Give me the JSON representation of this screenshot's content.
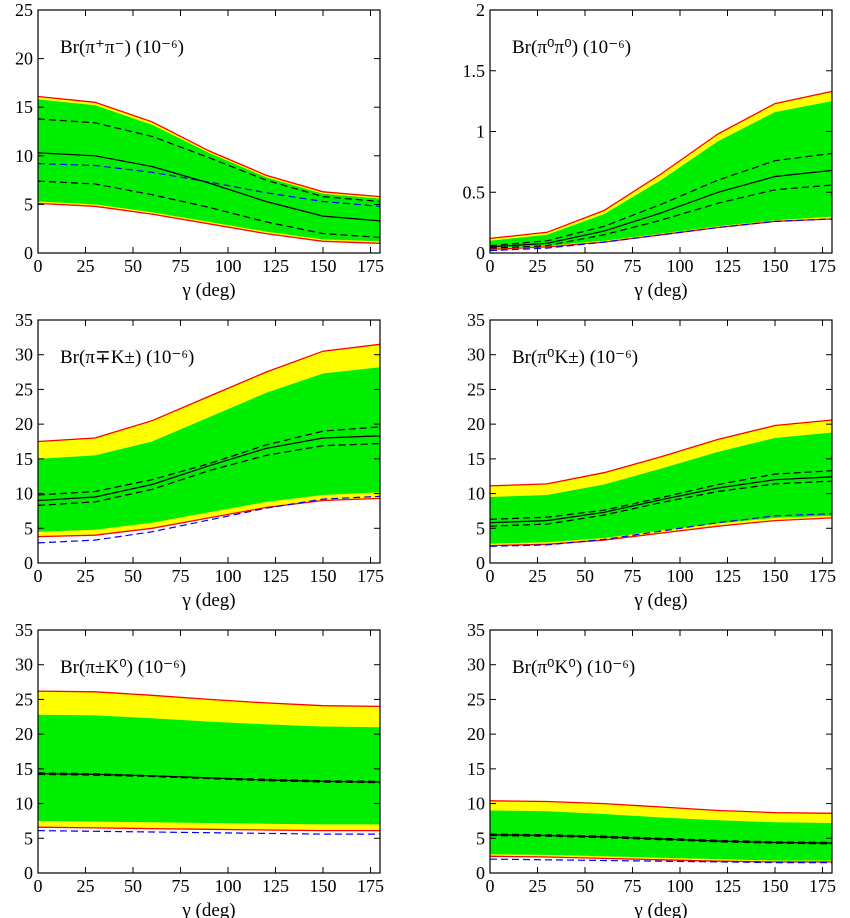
{
  "chart_data": [
    {
      "type": "band",
      "label": "Br(π⁺π⁻) (10⁻⁶)",
      "xlabel": "γ (deg)",
      "x": [
        0,
        30,
        60,
        90,
        120,
        150,
        180
      ],
      "xlim": [
        0,
        180
      ],
      "xticks": [
        0,
        25,
        50,
        75,
        100,
        125,
        150,
        175
      ],
      "ylim": [
        0,
        25
      ],
      "yticks": [
        0,
        5,
        10,
        15,
        20,
        25
      ],
      "bands": [
        {
          "color": "#ffff00",
          "edge": "#ff0000",
          "upper": [
            16.1,
            15.5,
            13.5,
            10.5,
            8,
            6.3,
            5.8
          ],
          "lower": [
            5.1,
            4.8,
            4,
            3,
            2,
            1.2,
            1.0
          ]
        },
        {
          "color": "#00ee00",
          "upper": [
            15.8,
            15.2,
            13.2,
            10.3,
            7.8,
            6.1,
            5.6
          ],
          "lower": [
            5.3,
            5,
            4.2,
            3.2,
            2.2,
            1.4,
            1.2
          ]
        }
      ],
      "series": [
        {
          "color": "#000000",
          "dash": false,
          "values": [
            10.3,
            10,
            8.9,
            7.2,
            5.3,
            3.8,
            3.3
          ]
        },
        {
          "color": "#000000",
          "dash": true,
          "values": [
            13.8,
            13.4,
            12,
            9.8,
            7.5,
            5.8,
            5.3
          ]
        },
        {
          "color": "#000000",
          "dash": true,
          "values": [
            7.4,
            7.1,
            6,
            4.7,
            3.2,
            2,
            1.6
          ]
        },
        {
          "color": "#0000ff",
          "dash": true,
          "values": [
            9.2,
            9,
            8.3,
            7.3,
            6.2,
            5.3,
            4.8
          ]
        }
      ]
    },
    {
      "type": "band",
      "label": "Br(π⁰π⁰) (10⁻⁶)",
      "xlabel": "γ (deg)",
      "x": [
        0,
        30,
        60,
        90,
        120,
        150,
        180
      ],
      "xlim": [
        0,
        180
      ],
      "xticks": [
        0,
        25,
        50,
        75,
        100,
        125,
        150,
        175
      ],
      "ylim": [
        0,
        2
      ],
      "yticks": [
        0,
        0.5,
        1,
        1.5,
        2
      ],
      "bands": [
        {
          "color": "#ffff00",
          "edge": "#ff0000",
          "upper": [
            0.12,
            0.17,
            0.35,
            0.65,
            0.98,
            1.23,
            1.33
          ],
          "lower": [
            0.03,
            0.05,
            0.09,
            0.15,
            0.21,
            0.26,
            0.28
          ]
        },
        {
          "color": "#00ee00",
          "upper": [
            0.1,
            0.15,
            0.32,
            0.6,
            0.92,
            1.16,
            1.25
          ],
          "lower": [
            0.04,
            0.06,
            0.1,
            0.16,
            0.22,
            0.27,
            0.3
          ]
        }
      ],
      "series": [
        {
          "color": "#000000",
          "dash": false,
          "values": [
            0.05,
            0.08,
            0.18,
            0.33,
            0.5,
            0.63,
            0.68
          ]
        },
        {
          "color": "#000000",
          "dash": true,
          "values": [
            0.06,
            0.1,
            0.22,
            0.4,
            0.6,
            0.76,
            0.82
          ]
        },
        {
          "color": "#000000",
          "dash": true,
          "values": [
            0.04,
            0.06,
            0.15,
            0.27,
            0.41,
            0.52,
            0.56
          ]
        },
        {
          "color": "#0000ff",
          "dash": true,
          "values": [
            0.02,
            0.04,
            0.09,
            0.15,
            0.21,
            0.26,
            0.28
          ]
        }
      ]
    },
    {
      "type": "band",
      "label": "Br(π∓K±) (10⁻⁶)",
      "xlabel": "γ (deg)",
      "x": [
        0,
        30,
        60,
        90,
        120,
        150,
        180
      ],
      "xlim": [
        0,
        180
      ],
      "xticks": [
        0,
        25,
        50,
        75,
        100,
        125,
        150,
        175
      ],
      "ylim": [
        0,
        35
      ],
      "yticks": [
        0,
        5,
        10,
        15,
        20,
        25,
        30,
        35
      ],
      "bands": [
        {
          "color": "#ffff00",
          "edge": "#ff0000",
          "upper": [
            17.5,
            18,
            20.5,
            24,
            27.5,
            30.5,
            31.5
          ],
          "lower": [
            3.8,
            4,
            5,
            6.5,
            8,
            9,
            9.3
          ]
        },
        {
          "color": "#00ee00",
          "upper": [
            15,
            15.5,
            17.5,
            21,
            24.5,
            27.3,
            28.2
          ],
          "lower": [
            4.5,
            4.8,
            5.8,
            7.3,
            8.8,
            9.8,
            10.2
          ]
        }
      ],
      "series": [
        {
          "color": "#000000",
          "dash": false,
          "values": [
            9,
            9.5,
            11.3,
            14,
            16.5,
            18,
            18.3
          ]
        },
        {
          "color": "#000000",
          "dash": true,
          "values": [
            9.8,
            10.3,
            12,
            14.3,
            17,
            19,
            19.6
          ]
        },
        {
          "color": "#000000",
          "dash": true,
          "values": [
            8.3,
            8.8,
            10.6,
            13.3,
            15.5,
            16.9,
            17.2
          ]
        },
        {
          "color": "#0000ff",
          "dash": true,
          "values": [
            2.9,
            3.3,
            4.5,
            6.2,
            7.9,
            9.2,
            9.6
          ]
        }
      ]
    },
    {
      "type": "band",
      "label": "Br(π⁰K±) (10⁻⁶)",
      "xlabel": "γ (deg)",
      "x": [
        0,
        30,
        60,
        90,
        120,
        150,
        180
      ],
      "xlim": [
        0,
        180
      ],
      "xticks": [
        0,
        25,
        50,
        75,
        100,
        125,
        150,
        175
      ],
      "ylim": [
        0,
        35
      ],
      "yticks": [
        0,
        5,
        10,
        15,
        20,
        25,
        30,
        35
      ],
      "bands": [
        {
          "color": "#ffff00",
          "edge": "#ff0000",
          "upper": [
            11.1,
            11.4,
            13,
            15.3,
            17.8,
            19.8,
            20.6
          ],
          "lower": [
            2.5,
            2.7,
            3.3,
            4.3,
            5.3,
            6.1,
            6.5
          ]
        },
        {
          "color": "#00ee00",
          "upper": [
            9.5,
            9.8,
            11.3,
            13.6,
            16,
            18,
            18.8
          ],
          "lower": [
            2.8,
            3,
            3.6,
            4.7,
            5.7,
            6.5,
            6.8
          ]
        }
      ],
      "series": [
        {
          "color": "#000000",
          "dash": false,
          "values": [
            5.8,
            6.1,
            7.3,
            9.1,
            10.8,
            12,
            12.4
          ]
        },
        {
          "color": "#000000",
          "dash": true,
          "values": [
            6.3,
            6.6,
            7.6,
            9.4,
            11.3,
            12.8,
            13.3
          ]
        },
        {
          "color": "#000000",
          "dash": true,
          "values": [
            5.3,
            5.6,
            6.9,
            8.7,
            10.3,
            11.4,
            11.8
          ]
        },
        {
          "color": "#0000ff",
          "dash": true,
          "values": [
            2.4,
            2.6,
            3.4,
            4.6,
            5.8,
            6.8,
            7.1
          ]
        }
      ]
    },
    {
      "type": "band",
      "label": "Br(π±K⁰) (10⁻⁶)",
      "xlabel": "γ (deg)",
      "x": [
        0,
        30,
        60,
        90,
        120,
        150,
        180
      ],
      "xlim": [
        0,
        180
      ],
      "xticks": [
        0,
        25,
        50,
        75,
        100,
        125,
        150,
        175
      ],
      "ylim": [
        0,
        35
      ],
      "yticks": [
        0,
        5,
        10,
        15,
        20,
        25,
        30,
        35
      ],
      "bands": [
        {
          "color": "#ffff00",
          "edge": "#ff0000",
          "upper": [
            26.2,
            26.1,
            25.6,
            25,
            24.5,
            24.1,
            24
          ],
          "lower": [
            6.6,
            6.5,
            6.4,
            6.3,
            6.2,
            6.1,
            6.1
          ]
        },
        {
          "color": "#00ee00",
          "upper": [
            22.8,
            22.7,
            22.3,
            21.8,
            21.4,
            21.1,
            21
          ],
          "lower": [
            7.5,
            7.4,
            7.3,
            7.2,
            7.1,
            7,
            7
          ]
        }
      ],
      "series": [
        {
          "color": "#000000",
          "dash": false,
          "values": [
            14.3,
            14.2,
            14,
            13.7,
            13.4,
            13.2,
            13.1
          ]
        },
        {
          "color": "#000000",
          "dash": true,
          "values": [
            14.4,
            14.3,
            14,
            13.7,
            13.5,
            13.3,
            13.2
          ]
        },
        {
          "color": "#000000",
          "dash": true,
          "values": [
            14.2,
            14.1,
            13.9,
            13.6,
            13.3,
            13.1,
            13
          ]
        },
        {
          "color": "#0000ff",
          "dash": true,
          "values": [
            6.1,
            6,
            5.9,
            5.8,
            5.7,
            5.6,
            5.6
          ]
        }
      ]
    },
    {
      "type": "band",
      "label": "Br(π⁰K⁰) (10⁻⁶)",
      "xlabel": "γ (deg)",
      "x": [
        0,
        30,
        60,
        90,
        120,
        150,
        180
      ],
      "xlim": [
        0,
        180
      ],
      "xticks": [
        0,
        25,
        50,
        75,
        100,
        125,
        150,
        175
      ],
      "ylim": [
        0,
        35
      ],
      "yticks": [
        0,
        5,
        10,
        15,
        20,
        25,
        30,
        35
      ],
      "bands": [
        {
          "color": "#ffff00",
          "edge": "#ff0000",
          "upper": [
            10.4,
            10.3,
            10,
            9.5,
            9,
            8.7,
            8.6
          ],
          "lower": [
            2.4,
            2.3,
            2.1,
            1.9,
            1.7,
            1.6,
            1.6
          ]
        },
        {
          "color": "#00ee00",
          "upper": [
            9,
            8.9,
            8.5,
            8,
            7.6,
            7.3,
            7.2
          ],
          "lower": [
            2.7,
            2.6,
            2.4,
            2.2,
            2,
            1.8,
            1.8
          ]
        }
      ],
      "series": [
        {
          "color": "#000000",
          "dash": false,
          "values": [
            5.5,
            5.4,
            5.2,
            4.9,
            4.6,
            4.4,
            4.3
          ]
        },
        {
          "color": "#000000",
          "dash": true,
          "values": [
            5.6,
            5.5,
            5.3,
            5,
            4.7,
            4.5,
            4.4
          ]
        },
        {
          "color": "#000000",
          "dash": true,
          "values": [
            5.4,
            5.3,
            5.1,
            4.8,
            4.5,
            4.3,
            4.2
          ]
        },
        {
          "color": "#0000ff",
          "dash": true,
          "values": [
            2,
            1.9,
            1.8,
            1.7,
            1.6,
            1.5,
            1.5
          ]
        }
      ]
    }
  ]
}
